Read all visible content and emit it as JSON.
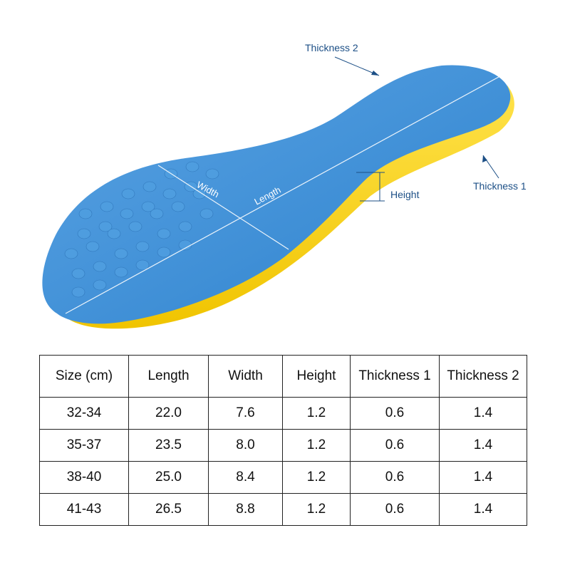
{
  "labels": {
    "thickness2": "Thickness 2",
    "thickness1": "Thickness 1",
    "height": "Height",
    "width": "Width",
    "length": "Length"
  },
  "colors": {
    "insole_top": "#3f8fd6",
    "insole_edge": "#f5d21a",
    "label": "#1c4f86"
  },
  "table": {
    "headers": [
      "Size (cm)",
      "Length",
      "Width",
      "Height",
      "Thickness 1",
      "Thickness 2"
    ],
    "rows": [
      [
        "32-34",
        "22.0",
        "7.6",
        "1.2",
        "0.6",
        "1.4"
      ],
      [
        "35-37",
        "23.5",
        "8.0",
        "1.2",
        "0.6",
        "1.4"
      ],
      [
        "38-40",
        "25.0",
        "8.4",
        "1.2",
        "0.6",
        "1.4"
      ],
      [
        "41-43",
        "26.5",
        "8.8",
        "1.2",
        "0.6",
        "1.4"
      ]
    ]
  }
}
